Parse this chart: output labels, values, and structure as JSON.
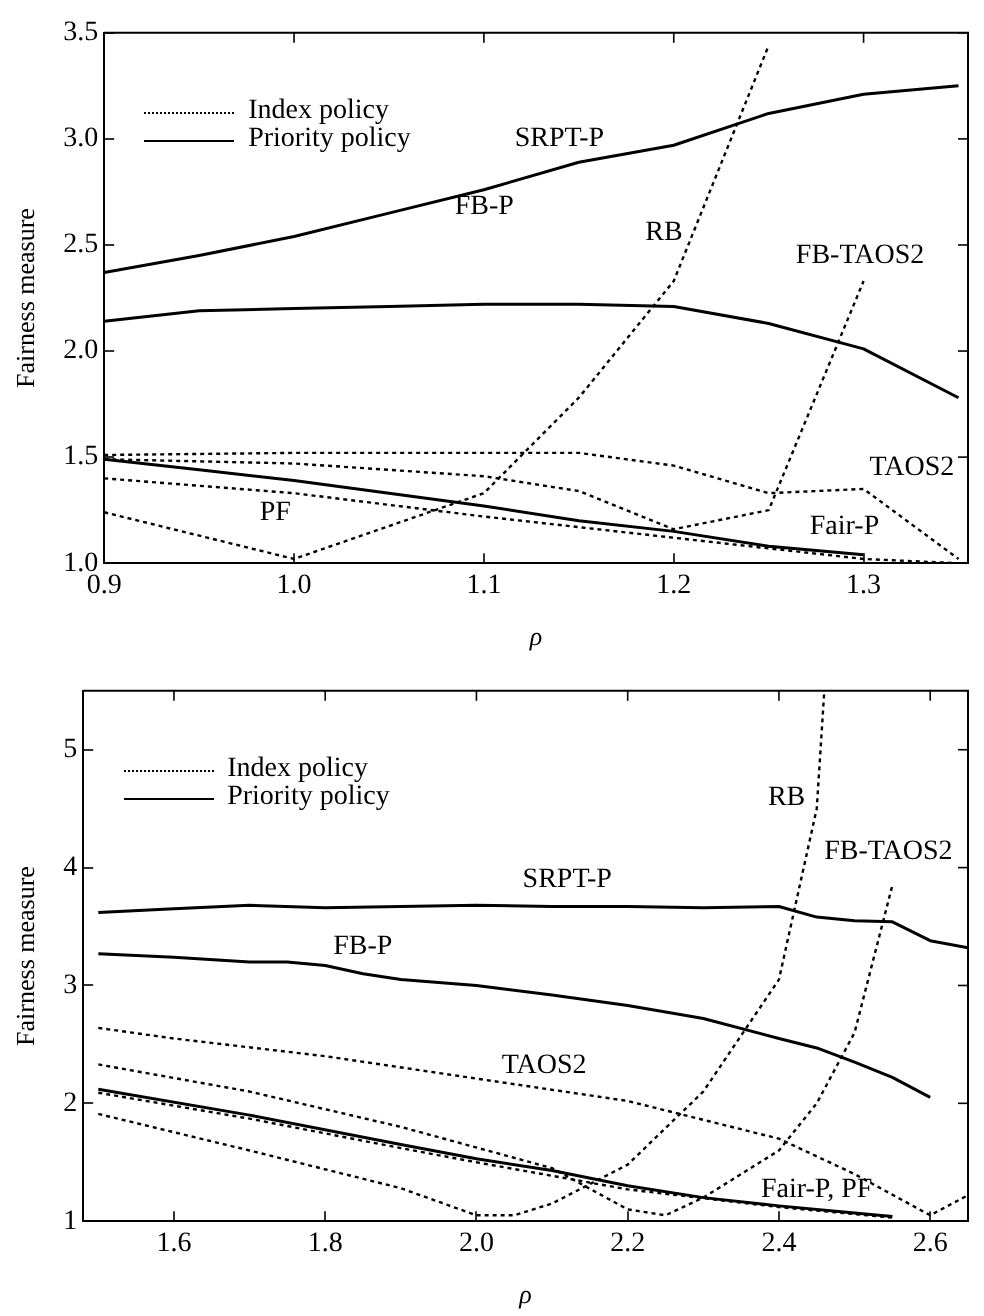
{
  "chart_data": [
    {
      "type": "line",
      "xlabel": "ρ",
      "ylabel": "Fairness measure",
      "legend": "top left",
      "grid": false,
      "xlim": [
        0.9,
        1.355
      ],
      "ylim": [
        1.0,
        3.5
      ],
      "xticks": [
        0.9,
        {
          "value": 1.0,
          "label": "1.0"
        },
        1.1,
        1.2,
        1.3
      ],
      "yticks": [
        {
          "value": 1.0,
          "label": "1.0"
        },
        1.5,
        {
          "value": 2.0,
          "label": "2.0"
        },
        2.5,
        {
          "value": 3.0,
          "label": "3.0"
        },
        3.5
      ],
      "series": [
        {
          "name": "Index policy",
          "line_style": "dotted",
          "color": "#000000",
          "x": [
            0.9,
            1.0,
            1.1,
            1.15,
            1.2,
            1.25
          ],
          "values": [
            1.24,
            1.02,
            1.33,
            1.78,
            2.33,
            3.44
          ]
        },
        {
          "line_style": "dotted",
          "color": "#000000",
          "x": [
            0.9,
            1.0,
            1.1,
            1.15,
            1.2,
            1.25,
            1.3
          ],
          "values": [
            1.49,
            1.47,
            1.41,
            1.34,
            1.16,
            1.25,
            2.33
          ]
        },
        {
          "line_style": "dotted",
          "color": "#000000",
          "x": [
            0.9,
            1.0,
            1.1,
            1.15,
            1.2,
            1.25,
            1.3,
            1.35
          ],
          "values": [
            1.51,
            1.52,
            1.52,
            1.52,
            1.46,
            1.33,
            1.35,
            1.02
          ]
        },
        {
          "line_style": "dotted",
          "color": "#000000",
          "x": [
            0.9,
            1.0,
            1.1,
            1.2,
            1.3,
            1.35
          ],
          "values": [
            1.4,
            1.33,
            1.22,
            1.12,
            1.02,
            1.0
          ]
        },
        {
          "name": "Priority policy",
          "line_style": "solid",
          "color": "#000000",
          "x": [
            0.9,
            0.95,
            1.0,
            1.05,
            1.1,
            1.15,
            1.2,
            1.25,
            1.3,
            1.35
          ],
          "values": [
            2.37,
            2.45,
            2.54,
            2.65,
            2.76,
            2.89,
            2.97,
            3.12,
            3.21,
            3.25
          ]
        },
        {
          "line_style": "solid",
          "color": "#000000",
          "x": [
            0.9,
            0.95,
            1.0,
            1.05,
            1.1,
            1.15,
            1.2,
            1.25,
            1.3,
            1.35
          ],
          "values": [
            2.14,
            2.19,
            2.2,
            2.21,
            2.22,
            2.22,
            2.21,
            2.13,
            2.01,
            1.78
          ]
        },
        {
          "line_style": "solid",
          "color": "#000000",
          "x": [
            0.9,
            0.95,
            1.0,
            1.05,
            1.1,
            1.15,
            1.2,
            1.25,
            1.3
          ],
          "values": [
            1.49,
            1.44,
            1.39,
            1.33,
            1.27,
            1.2,
            1.15,
            1.08,
            1.04
          ]
        }
      ],
      "annotations": [
        "SRPT-P",
        "FB-P",
        "RB",
        "FB-TAOS2",
        "TAOS2",
        "PF",
        "Fair-P"
      ]
    },
    {
      "type": "line",
      "xlabel": "ρ",
      "ylabel": "Fairness measure",
      "legend": "top left",
      "grid": false,
      "xlim": [
        1.48,
        2.65
      ],
      "ylim": [
        1,
        5.5
      ],
      "xticks": [
        1.6,
        1.8,
        {
          "value": 2.0,
          "label": "2.0"
        },
        2.2,
        2.4,
        2.6
      ],
      "yticks": [
        1,
        2,
        3,
        4,
        5
      ],
      "series": [
        {
          "name": "Index policy",
          "line_style": "dotted",
          "color": "#000000",
          "x": [
            1.5,
            1.6,
            1.8,
            2.0,
            2.2,
            2.4,
            2.5,
            2.6,
            2.65
          ],
          "values": [
            2.64,
            2.55,
            2.4,
            2.21,
            2.02,
            1.7,
            1.4,
            1.05,
            1.22
          ]
        },
        {
          "line_style": "dotted",
          "color": "#000000",
          "x": [
            1.5,
            1.7,
            1.9,
            2.1,
            2.2,
            2.25,
            2.3,
            2.4,
            2.45,
            2.5,
            2.55
          ],
          "values": [
            2.33,
            2.1,
            1.8,
            1.45,
            1.1,
            1.05,
            1.2,
            1.6,
            2.0,
            2.6,
            3.85
          ]
        },
        {
          "line_style": "dotted",
          "color": "#000000",
          "x": [
            1.5,
            1.7,
            1.9,
            2.0,
            2.05,
            2.1,
            2.2,
            2.3,
            2.4,
            2.45,
            2.46
          ],
          "values": [
            1.91,
            1.6,
            1.28,
            1.05,
            1.05,
            1.15,
            1.48,
            2.1,
            3.05,
            4.5,
            5.5
          ]
        },
        {
          "line_style": "dotted",
          "color": "#000000",
          "x": [
            1.5,
            1.7,
            1.9,
            2.0,
            2.2,
            2.4,
            2.5,
            2.55
          ],
          "values": [
            2.09,
            1.87,
            1.62,
            1.5,
            1.27,
            1.12,
            1.06,
            1.03
          ]
        },
        {
          "name": "Priority policy",
          "line_style": "solid",
          "color": "#000000",
          "x": [
            1.5,
            1.6,
            1.7,
            1.8,
            1.9,
            2.0,
            2.1,
            2.2,
            2.3,
            2.4,
            2.45,
            2.5,
            2.55,
            2.6,
            2.65
          ],
          "values": [
            3.62,
            3.65,
            3.68,
            3.66,
            3.67,
            3.68,
            3.67,
            3.67,
            3.66,
            3.67,
            3.58,
            3.55,
            3.54,
            3.38,
            3.32
          ]
        },
        {
          "line_style": "solid",
          "color": "#000000",
          "x": [
            1.5,
            1.6,
            1.7,
            1.75,
            1.8,
            1.85,
            1.9,
            2.0,
            2.1,
            2.2,
            2.3,
            2.4,
            2.45,
            2.5,
            2.55,
            2.6
          ],
          "values": [
            3.27,
            3.24,
            3.2,
            3.2,
            3.17,
            3.1,
            3.05,
            3.0,
            2.92,
            2.83,
            2.72,
            2.55,
            2.47,
            2.35,
            2.22,
            2.05
          ]
        },
        {
          "line_style": "solid",
          "color": "#000000",
          "x": [
            1.5,
            1.7,
            1.9,
            2.0,
            2.1,
            2.2,
            2.3,
            2.4,
            2.5,
            2.55
          ],
          "values": [
            2.12,
            1.9,
            1.65,
            1.53,
            1.43,
            1.3,
            1.2,
            1.13,
            1.07,
            1.04
          ]
        }
      ],
      "annotations": [
        "SRPT-P",
        "FB-P",
        "RB",
        "FB-TAOS2",
        "TAOS2",
        "Fair-P, PF"
      ]
    }
  ]
}
